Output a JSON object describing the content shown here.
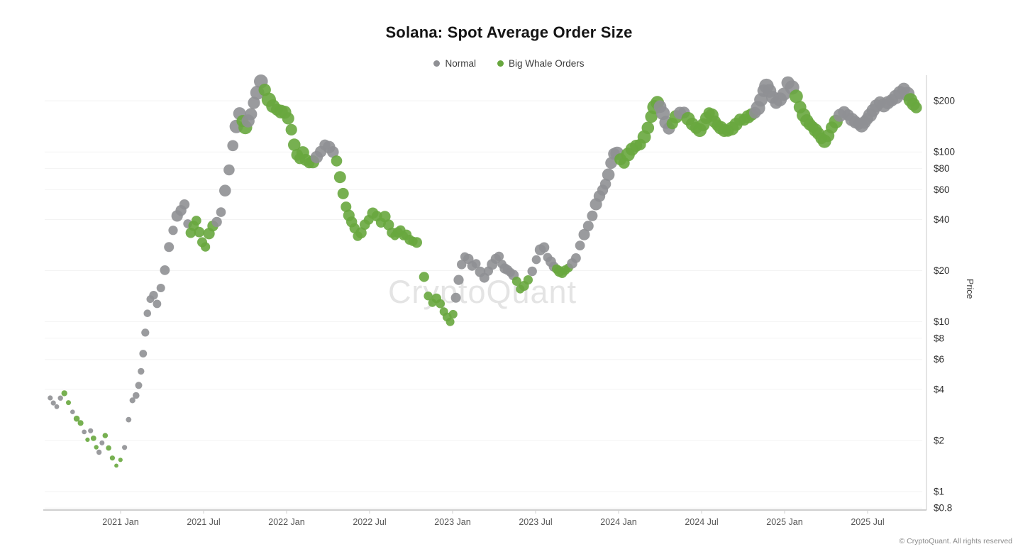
{
  "chart_data": {
    "type": "scatter",
    "title": "Solana: Spot Average Order Size",
    "ylabel": "Price",
    "y_scale": "log",
    "ylim": [
      0.8,
      260
    ],
    "x_unit": "months_since_2020_08",
    "grid": "horizontal-faint",
    "legend_position": "top-center",
    "series": [
      {
        "key": "n",
        "name": "Normal",
        "color": "#8f9094"
      },
      {
        "key": "w",
        "name": "Big Whale Orders",
        "color": "#68a73e"
      }
    ],
    "y_ticks": [
      {
        "label": "$200",
        "value": 200
      },
      {
        "label": "$100",
        "value": 100
      },
      {
        "label": "$80",
        "value": 80
      },
      {
        "label": "$60",
        "value": 60
      },
      {
        "label": "$40",
        "value": 40
      },
      {
        "label": "$20",
        "value": 20
      },
      {
        "label": "$10",
        "value": 10
      },
      {
        "label": "$8",
        "value": 8
      },
      {
        "label": "$6",
        "value": 6
      },
      {
        "label": "$4",
        "value": 4
      },
      {
        "label": "$2",
        "value": 2
      },
      {
        "label": "$1",
        "value": 1
      },
      {
        "label": "$0.8",
        "value": 0.8
      }
    ],
    "x_ticks": [
      {
        "label": "2021 Jan",
        "t": 5
      },
      {
        "label": "2021 Jul",
        "t": 11
      },
      {
        "label": "2022 Jan",
        "t": 17
      },
      {
        "label": "2022 Jul",
        "t": 23
      },
      {
        "label": "2023 Jan",
        "t": 29
      },
      {
        "label": "2023 Jul",
        "t": 35
      },
      {
        "label": "2024 Jan",
        "t": 41
      },
      {
        "label": "2024 Jul",
        "t": 47
      },
      {
        "label": "2025 Jan",
        "t": 53
      },
      {
        "label": "2025 Jul",
        "t": 59
      }
    ],
    "points": [
      [
        0,
        3.6,
        "n",
        4
      ],
      [
        0.25,
        3.3,
        "n",
        3.5
      ],
      [
        0.5,
        3.1,
        "n",
        3.5
      ],
      [
        0.75,
        3.5,
        "n",
        4
      ],
      [
        1,
        3.8,
        "w",
        4
      ],
      [
        1.25,
        3.4,
        "w",
        3.5
      ],
      [
        1.5,
        3.0,
        "n",
        3.5
      ],
      [
        1.75,
        2.7,
        "w",
        4
      ],
      [
        2,
        2.5,
        "w",
        4
      ],
      [
        2.25,
        2.2,
        "n",
        3.5
      ],
      [
        2.5,
        2.0,
        "w",
        3.5
      ],
      [
        2.75,
        2.3,
        "n",
        3.5
      ],
      [
        3,
        2.1,
        "w",
        4
      ],
      [
        3.25,
        1.85,
        "w",
        3.5
      ],
      [
        3.5,
        1.7,
        "n",
        3.5
      ],
      [
        3.75,
        1.9,
        "n",
        3.5
      ],
      [
        4,
        2.1,
        "w",
        4
      ],
      [
        4.25,
        1.8,
        "w",
        3.5
      ],
      [
        4.5,
        1.6,
        "w",
        3.5
      ],
      [
        4.75,
        1.45,
        "w",
        3
      ],
      [
        5,
        1.55,
        "w",
        3.5
      ],
      [
        5.25,
        1.8,
        "n",
        3.5
      ],
      [
        5.5,
        2.6,
        "n",
        4
      ],
      [
        5.75,
        3.4,
        "n",
        4.5
      ],
      [
        6,
        3.7,
        "n",
        4.5
      ],
      [
        6.2,
        4.3,
        "n",
        5
      ],
      [
        6.4,
        5.2,
        "n",
        5
      ],
      [
        6.6,
        6.5,
        "n",
        5
      ],
      [
        6.8,
        8.5,
        "n",
        5.5
      ],
      [
        7,
        11,
        "n",
        5.5
      ],
      [
        7.25,
        13.5,
        "n",
        6
      ],
      [
        7.5,
        14.5,
        "n",
        6
      ],
      [
        7.75,
        13,
        "n",
        6
      ],
      [
        8,
        16,
        "n",
        6.5
      ],
      [
        8.25,
        20,
        "n",
        6.5
      ],
      [
        8.5,
        27,
        "n",
        7
      ],
      [
        8.75,
        34,
        "n",
        7
      ],
      [
        9,
        42,
        "n",
        7.5
      ],
      [
        9.25,
        46,
        "n",
        7.5
      ],
      [
        9.5,
        50,
        "n",
        7.5
      ],
      [
        9.75,
        38,
        "n",
        7
      ],
      [
        10,
        33,
        "w",
        7
      ],
      [
        10.25,
        36,
        "w",
        7.5
      ],
      [
        10.5,
        39,
        "w",
        7.5
      ],
      [
        10.75,
        34,
        "w",
        7
      ],
      [
        11,
        30,
        "w",
        7
      ],
      [
        11.25,
        28,
        "w",
        7
      ],
      [
        11.5,
        33,
        "w",
        7.5
      ],
      [
        11.75,
        36,
        "w",
        7.5
      ],
      [
        12,
        38,
        "n",
        7.5
      ],
      [
        12.25,
        44,
        "n",
        7.5
      ],
      [
        12.5,
        60,
        "n",
        8
      ],
      [
        12.75,
        80,
        "n",
        8
      ],
      [
        13,
        110,
        "n",
        8.5
      ],
      [
        13.25,
        140,
        "n",
        9
      ],
      [
        13.5,
        165,
        "n",
        9
      ],
      [
        13.75,
        150,
        "w",
        9
      ],
      [
        14,
        140,
        "w",
        9
      ],
      [
        14.25,
        155,
        "n",
        9
      ],
      [
        14.5,
        170,
        "n",
        9
      ],
      [
        14.75,
        195,
        "n",
        9.5
      ],
      [
        15,
        220,
        "n",
        9.5
      ],
      [
        15.25,
        255,
        "n",
        10
      ],
      [
        15.5,
        230,
        "w",
        9.5
      ],
      [
        15.75,
        205,
        "w",
        9.5
      ],
      [
        16,
        190,
        "w",
        9.5
      ],
      [
        16.25,
        180,
        "w",
        9
      ],
      [
        16.5,
        172,
        "w",
        9
      ],
      [
        16.75,
        168,
        "w",
        9
      ],
      [
        17,
        155,
        "w",
        9
      ],
      [
        17.25,
        135,
        "w",
        9
      ],
      [
        17.5,
        112,
        "w",
        8.5
      ],
      [
        17.75,
        98,
        "w",
        8.5
      ],
      [
        18,
        92,
        "w",
        8.5
      ],
      [
        18.25,
        98,
        "w",
        8.5
      ],
      [
        18.5,
        88,
        "w",
        8.5
      ],
      [
        18.75,
        85,
        "w",
        8
      ],
      [
        19,
        88,
        "w",
        8.5
      ],
      [
        19.25,
        95,
        "n",
        8.5
      ],
      [
        19.5,
        102,
        "n",
        8.5
      ],
      [
        19.75,
        110,
        "n",
        8.5
      ],
      [
        20,
        105,
        "n",
        8.5
      ],
      [
        20.25,
        98,
        "n",
        8.5
      ],
      [
        20.5,
        88,
        "w",
        8.5
      ],
      [
        20.75,
        72,
        "w",
        8
      ],
      [
        21,
        58,
        "w",
        8
      ],
      [
        21.25,
        48,
        "w",
        8
      ],
      [
        21.5,
        42,
        "w",
        7.5
      ],
      [
        21.75,
        38,
        "w",
        7.5
      ],
      [
        22,
        35,
        "w",
        7.5
      ],
      [
        22.25,
        32,
        "w",
        7.5
      ],
      [
        22.5,
        34,
        "w",
        7.5
      ],
      [
        22.75,
        38,
        "w",
        7.5
      ],
      [
        23,
        40,
        "w",
        7.5
      ],
      [
        23.25,
        43,
        "w",
        7.5
      ],
      [
        23.5,
        41,
        "w",
        7.5
      ],
      [
        23.75,
        38,
        "w",
        7.5
      ],
      [
        24,
        42,
        "w",
        7.5
      ],
      [
        24.25,
        38,
        "w",
        7.5
      ],
      [
        24.5,
        34,
        "w",
        7.5
      ],
      [
        24.75,
        32,
        "w",
        7
      ],
      [
        25,
        33,
        "w",
        7
      ],
      [
        25.25,
        34,
        "w",
        7
      ],
      [
        25.5,
        32,
        "w",
        7
      ],
      [
        25.75,
        33,
        "w",
        7
      ],
      [
        26,
        31,
        "w",
        7
      ],
      [
        26.25,
        30,
        "w",
        7
      ],
      [
        26.5,
        29,
        "w",
        7
      ],
      [
        27,
        18,
        "w",
        7
      ],
      [
        27.25,
        14,
        "w",
        6.5
      ],
      [
        27.5,
        13,
        "w",
        6.5
      ],
      [
        27.75,
        14,
        "w",
        6.5
      ],
      [
        28,
        13,
        "w",
        6.5
      ],
      [
        28.25,
        11.5,
        "w",
        6.5
      ],
      [
        28.5,
        10.5,
        "w",
        6
      ],
      [
        28.75,
        9.8,
        "w",
        6
      ],
      [
        29,
        11,
        "w",
        6.5
      ],
      [
        29.25,
        14,
        "n",
        6.5
      ],
      [
        29.5,
        18,
        "n",
        7
      ],
      [
        29.75,
        22,
        "n",
        7
      ],
      [
        30,
        24,
        "n",
        7
      ],
      [
        30.25,
        23,
        "n",
        7
      ],
      [
        30.5,
        21,
        "n",
        7
      ],
      [
        30.75,
        22,
        "n",
        7
      ],
      [
        31,
        20,
        "n",
        7
      ],
      [
        31.25,
        18.5,
        "n",
        7
      ],
      [
        31.5,
        20,
        "n",
        7
      ],
      [
        31.75,
        21.5,
        "n",
        7
      ],
      [
        32,
        23,
        "n",
        7
      ],
      [
        32.25,
        24,
        "n",
        7
      ],
      [
        32.5,
        22,
        "n",
        7
      ],
      [
        32.75,
        21,
        "n",
        7
      ],
      [
        33,
        20.5,
        "n",
        7
      ],
      [
        33.25,
        19.5,
        "n",
        7
      ],
      [
        33.5,
        18.5,
        "n",
        7
      ],
      [
        33.75,
        17,
        "w",
        6.5
      ],
      [
        34,
        15.5,
        "w",
        6.5
      ],
      [
        34.25,
        16.5,
        "w",
        6.5
      ],
      [
        34.5,
        18,
        "w",
        6.5
      ],
      [
        34.75,
        20,
        "n",
        7
      ],
      [
        35,
        23,
        "n",
        7
      ],
      [
        35.25,
        26,
        "n",
        7.5
      ],
      [
        35.5,
        27,
        "n",
        7.5
      ],
      [
        35.75,
        24,
        "n",
        7
      ],
      [
        36,
        23,
        "n",
        7
      ],
      [
        36.25,
        21.5,
        "n",
        7
      ],
      [
        36.5,
        20.5,
        "w",
        7
      ],
      [
        36.75,
        19.5,
        "w",
        7
      ],
      [
        37,
        19,
        "w",
        7
      ],
      [
        37.25,
        20,
        "w",
        7
      ],
      [
        37.5,
        21,
        "w",
        7
      ],
      [
        37.75,
        22.5,
        "n",
        7
      ],
      [
        38,
        24,
        "n",
        7
      ],
      [
        38.25,
        28,
        "n",
        7.5
      ],
      [
        38.5,
        32,
        "n",
        7.5
      ],
      [
        38.75,
        36,
        "n",
        7.5
      ],
      [
        39,
        42,
        "n",
        8
      ],
      [
        39.25,
        50,
        "n",
        8
      ],
      [
        39.5,
        56,
        "n",
        8
      ],
      [
        39.75,
        60,
        "n",
        8
      ],
      [
        40,
        64,
        "n",
        8.5
      ],
      [
        40.25,
        72,
        "n",
        8.5
      ],
      [
        40.5,
        85,
        "n",
        8.5
      ],
      [
        40.75,
        98,
        "n",
        9
      ],
      [
        41,
        100,
        "n",
        9
      ],
      [
        41.25,
        92,
        "w",
        8.5
      ],
      [
        41.5,
        86,
        "w",
        8.5
      ],
      [
        41.75,
        95,
        "w",
        9
      ],
      [
        42,
        102,
        "w",
        9
      ],
      [
        42.25,
        108,
        "w",
        9
      ],
      [
        42.5,
        112,
        "w",
        9
      ],
      [
        42.75,
        125,
        "w",
        9
      ],
      [
        43,
        140,
        "w",
        9
      ],
      [
        43.25,
        160,
        "w",
        9.5
      ],
      [
        43.5,
        180,
        "w",
        9.5
      ],
      [
        43.75,
        192,
        "w",
        9.5
      ],
      [
        44,
        185,
        "n",
        9.5
      ],
      [
        44.25,
        172,
        "n",
        9
      ],
      [
        44.5,
        152,
        "n",
        9
      ],
      [
        44.75,
        138,
        "n",
        9
      ],
      [
        45,
        145,
        "w",
        9
      ],
      [
        45.25,
        158,
        "w",
        9
      ],
      [
        45.5,
        168,
        "n",
        9
      ],
      [
        45.75,
        172,
        "n",
        9
      ],
      [
        46,
        160,
        "w",
        9
      ],
      [
        46.25,
        148,
        "w",
        9
      ],
      [
        46.5,
        138,
        "w",
        9
      ],
      [
        46.75,
        132,
        "w",
        9
      ],
      [
        47,
        142,
        "w",
        9
      ],
      [
        47.25,
        158,
        "w",
        9
      ],
      [
        47.5,
        172,
        "w",
        9
      ],
      [
        47.75,
        168,
        "w",
        9
      ],
      [
        48,
        152,
        "w",
        9
      ],
      [
        48.25,
        142,
        "w",
        9
      ],
      [
        48.5,
        136,
        "w",
        9
      ],
      [
        48.75,
        132,
        "w",
        9
      ],
      [
        49,
        134,
        "w",
        9
      ],
      [
        49.25,
        140,
        "w",
        9
      ],
      [
        49.5,
        148,
        "w",
        9
      ],
      [
        49.75,
        155,
        "w",
        9
      ],
      [
        50,
        152,
        "w",
        9
      ],
      [
        50.25,
        158,
        "w",
        9
      ],
      [
        50.5,
        165,
        "w",
        9
      ],
      [
        50.75,
        172,
        "n",
        9
      ],
      [
        51,
        185,
        "n",
        9.5
      ],
      [
        51.25,
        205,
        "n",
        9.5
      ],
      [
        51.5,
        228,
        "n",
        9.5
      ],
      [
        51.75,
        240,
        "n",
        9.5
      ],
      [
        52,
        225,
        "n",
        9.5
      ],
      [
        52.25,
        210,
        "n",
        9.5
      ],
      [
        52.5,
        198,
        "n",
        9.5
      ],
      [
        52.75,
        208,
        "n",
        9.5
      ],
      [
        53,
        220,
        "n",
        9.5
      ],
      [
        53.25,
        252,
        "n",
        10
      ],
      [
        53.5,
        235,
        "n",
        9.5
      ],
      [
        53.75,
        210,
        "w",
        9.5
      ],
      [
        54,
        185,
        "w",
        9.5
      ],
      [
        54.25,
        168,
        "w",
        9
      ],
      [
        54.5,
        155,
        "w",
        9
      ],
      [
        54.75,
        145,
        "w",
        9
      ],
      [
        55,
        138,
        "w",
        9
      ],
      [
        55.25,
        132,
        "w",
        9
      ],
      [
        55.5,
        128,
        "w",
        9
      ],
      [
        55.75,
        122,
        "w",
        9
      ],
      [
        56,
        118,
        "w",
        9
      ],
      [
        56.25,
        126,
        "w",
        9
      ],
      [
        56.5,
        138,
        "w",
        9
      ],
      [
        56.75,
        148,
        "w",
        9
      ],
      [
        57,
        162,
        "n",
        9
      ],
      [
        57.25,
        172,
        "n",
        9
      ],
      [
        57.5,
        168,
        "n",
        9
      ],
      [
        57.75,
        158,
        "n",
        9
      ],
      [
        58,
        150,
        "n",
        9
      ],
      [
        58.25,
        144,
        "n",
        9
      ],
      [
        58.5,
        140,
        "n",
        9
      ],
      [
        58.75,
        148,
        "n",
        9
      ],
      [
        59,
        158,
        "n",
        9
      ],
      [
        59.25,
        168,
        "n",
        9
      ],
      [
        59.5,
        178,
        "n",
        9
      ],
      [
        59.75,
        186,
        "n",
        9.5
      ],
      [
        60,
        192,
        "n",
        9.5
      ],
      [
        60.25,
        185,
        "n",
        9.5
      ],
      [
        60.5,
        195,
        "n",
        9.5
      ],
      [
        60.75,
        205,
        "n",
        9.5
      ],
      [
        61,
        215,
        "n",
        9.5
      ],
      [
        61.25,
        225,
        "n",
        9.5
      ],
      [
        61.5,
        232,
        "n",
        9.5
      ],
      [
        61.75,
        215,
        "n",
        9.5
      ],
      [
        62,
        200,
        "w",
        9.5
      ],
      [
        62.25,
        192,
        "w",
        9.5
      ],
      [
        62.5,
        186,
        "w",
        9
      ]
    ]
  },
  "watermark": {
    "text": "CryptoQuant"
  },
  "footer": {
    "copyright": "© CryptoQuant. All rights reserved"
  }
}
